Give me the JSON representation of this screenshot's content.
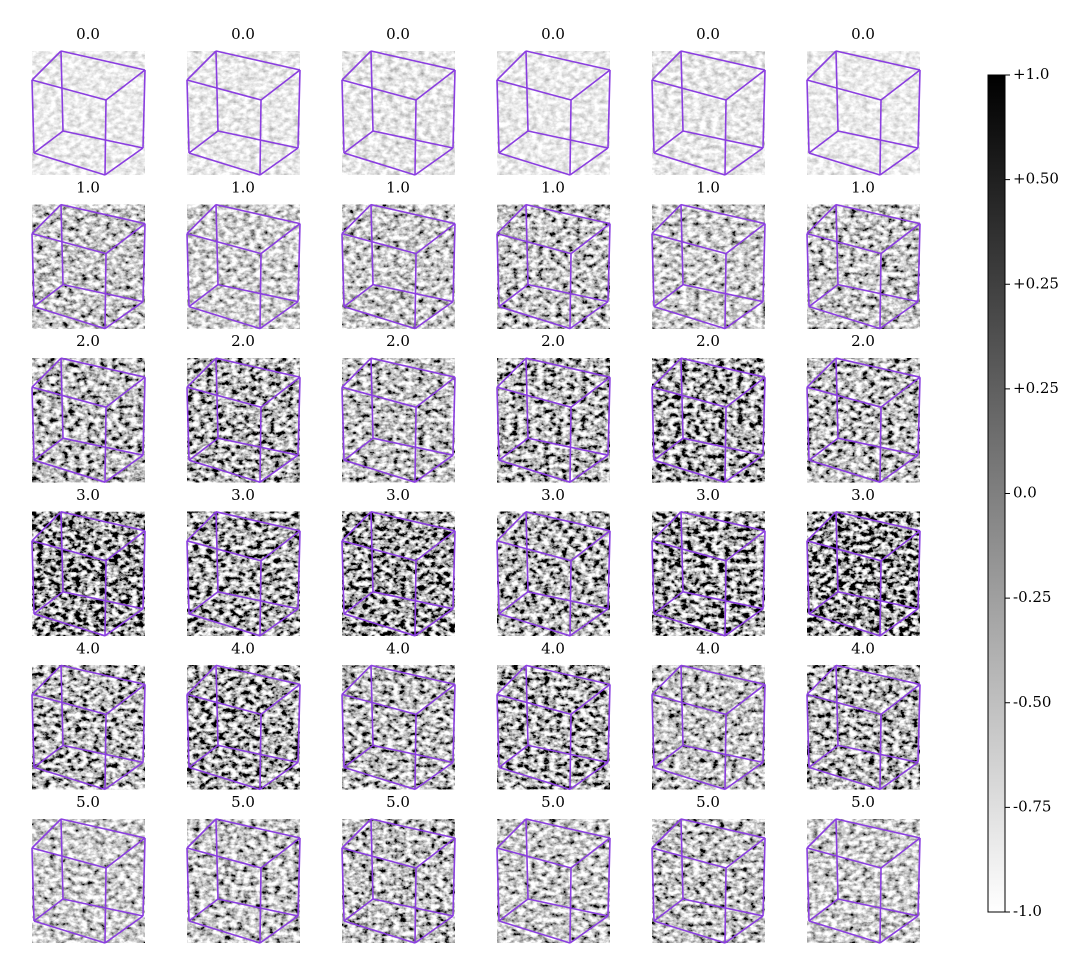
{
  "grid": {
    "rows": [
      [
        "0.0",
        "0.0",
        "0.0",
        "0.0",
        "0.0",
        "0.0"
      ],
      [
        "1.0",
        "1.0",
        "1.0",
        "1.0",
        "1.0",
        "1.0"
      ],
      [
        "2.0",
        "2.0",
        "2.0",
        "2.0",
        "2.0",
        "2.0"
      ],
      [
        "3.0",
        "3.0",
        "3.0",
        "3.0",
        "3.0",
        "3.0"
      ],
      [
        "4.0",
        "4.0",
        "4.0",
        "4.0",
        "4.0",
        "4.0"
      ],
      [
        "5.0",
        "5.0",
        "5.0",
        "5.0",
        "5.0",
        "5.0"
      ]
    ]
  },
  "colorbar": {
    "tick_labels": [
      "+1.0",
      "+0.50",
      "+0.25",
      "+0.25",
      "0.0",
      "-0.25",
      "-0.50",
      "-0.75",
      "-1.0"
    ]
  }
}
